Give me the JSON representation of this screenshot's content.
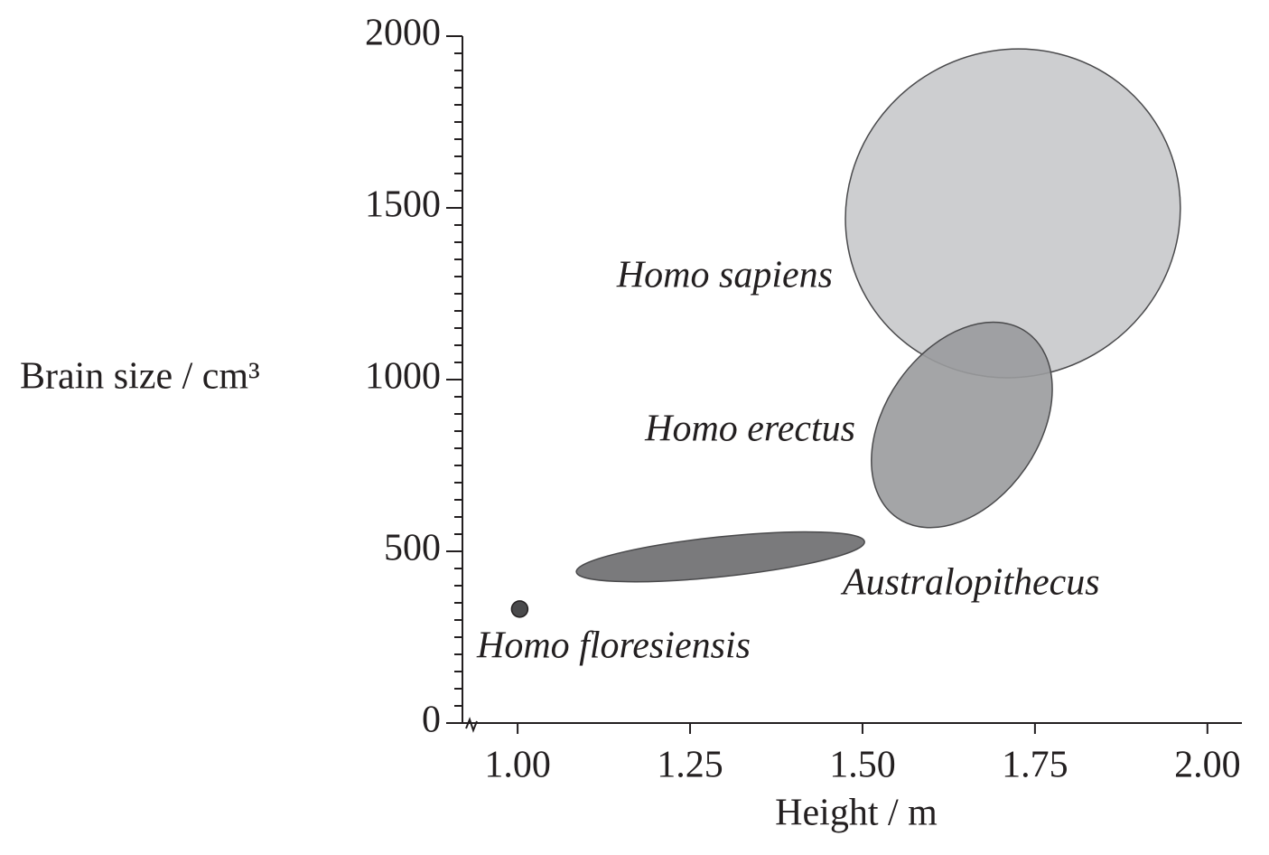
{
  "chart_data": {
    "type": "region",
    "xlabel": "Height / m",
    "ylabel": "Brain size / cm³",
    "xlim": [
      0.92,
      2.05
    ],
    "ylim": [
      0,
      2000
    ],
    "xticks": [
      {
        "value": 1.0,
        "label": "1.00"
      },
      {
        "value": 1.25,
        "label": "1.25"
      },
      {
        "value": 1.5,
        "label": "1.50"
      },
      {
        "value": 1.75,
        "label": "1.75"
      },
      {
        "value": 2.0,
        "label": "2.00"
      }
    ],
    "yticks": [
      0,
      500,
      1000,
      1500,
      2000
    ],
    "yminorticks": [
      50,
      100,
      150,
      200,
      250,
      300,
      350,
      400,
      450,
      550,
      600,
      650,
      700,
      750,
      800,
      850,
      900,
      950,
      1050,
      1100,
      1150,
      1200,
      1250,
      1300,
      1350,
      1400,
      1450,
      1550,
      1600,
      1650,
      1700,
      1750,
      1800,
      1850,
      1900,
      1950
    ],
    "series": [
      {
        "name": "Homo sapiens",
        "color": "#c8c9cb",
        "x": 1.718,
        "y": 1484,
        "rx": 0.245,
        "ry": 474,
        "rotation": -30
      },
      {
        "name": "Homo erectus",
        "color": "#9a9b9d",
        "x": 1.644,
        "y": 868,
        "rx": 0.164,
        "ry": 224,
        "rotation": -55
      },
      {
        "name": "Australopithecus",
        "color": "#6b6c6e",
        "x": 1.294,
        "y": 484,
        "rx": 0.21,
        "ry": 58,
        "rotation": -6
      },
      {
        "name": "Homo floresiensis",
        "color": "#4a4a4c",
        "x": 1.003,
        "y": 332
      }
    ]
  }
}
